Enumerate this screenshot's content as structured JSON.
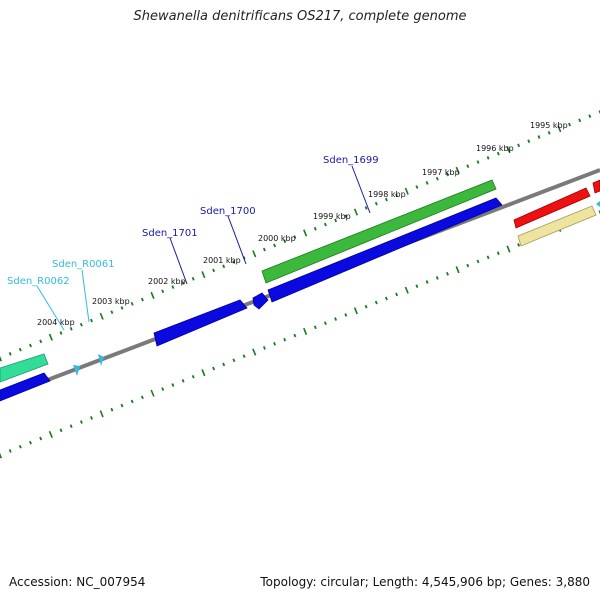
{
  "title": "Shewanella denitrificans OS217, complete genome",
  "footer": {
    "accession": "Accession: NC_007954",
    "summary": "Topology: circular; Length: 4,545,906 bp; Genes: 3,880"
  },
  "colors": {
    "backbone": "#7a7a7a",
    "tick": "#1a7a1a",
    "cds_forward": "#3cb83c",
    "cds_reverse": "#0a0ae0",
    "rna": "#33bbdd",
    "teal": "#33dd99",
    "red": "#ee1111",
    "pale": "#eee4a0",
    "label_gene": "#1a1aa8",
    "label_rna": "#33bbdd"
  },
  "scale_labels": [
    "1995 kbp",
    "1996 kbp",
    "1997 kbp",
    "1998 kbp",
    "1999 kbp",
    "2000 kbp",
    "2001 kbp",
    "2002 kbp",
    "2003 kbp",
    "2004 kbp"
  ],
  "gene_labels": [
    {
      "text": "Sden_1699",
      "type": "gene"
    },
    {
      "text": "Sden_1700",
      "type": "gene"
    },
    {
      "text": "Sden_1701",
      "type": "gene"
    },
    {
      "text": "Sden_R0061",
      "type": "rna"
    },
    {
      "text": "Sden_R0062",
      "type": "rna"
    }
  ]
}
